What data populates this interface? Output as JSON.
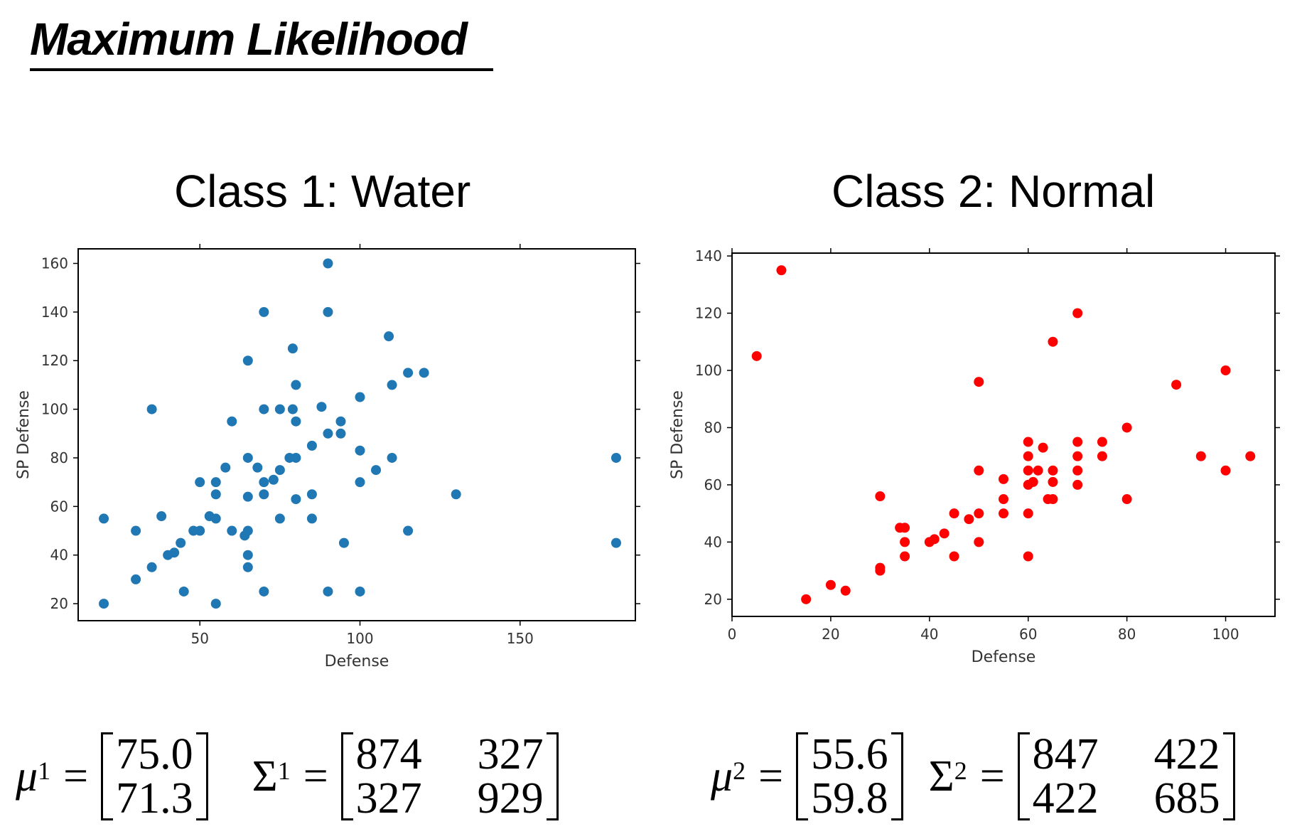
{
  "page_title": "Maximum Likelihood",
  "class_titles": [
    "Class 1: Water",
    "Class 2: Normal"
  ],
  "formulas": {
    "class1": {
      "mu_symbol": "μ",
      "mu_sup": "1",
      "mu": [
        "75.0",
        "71.3"
      ],
      "sigma_symbol": "Σ",
      "sigma_sup": "1",
      "sigma": [
        [
          "874",
          "327"
        ],
        [
          "327",
          "929"
        ]
      ]
    },
    "class2": {
      "mu_symbol": "μ",
      "mu_sup": "2",
      "mu": [
        "55.6",
        "59.8"
      ],
      "sigma_symbol": "Σ",
      "sigma_sup": "2",
      "sigma": [
        [
          "847",
          "422"
        ],
        [
          "422",
          "685"
        ]
      ]
    }
  },
  "chart_data": [
    {
      "type": "scatter",
      "title": "Class 1: Water",
      "xlabel": "Defense",
      "ylabel": "SP Defense",
      "xlim": [
        12,
        186
      ],
      "ylim": [
        13,
        166
      ],
      "xticks": [
        50,
        100,
        150
      ],
      "yticks": [
        20,
        40,
        60,
        80,
        100,
        120,
        140,
        160
      ],
      "color": "#1f77b4",
      "points": [
        [
          20,
          20
        ],
        [
          20,
          55
        ],
        [
          30,
          50
        ],
        [
          30,
          30
        ],
        [
          35,
          100
        ],
        [
          35,
          35
        ],
        [
          38,
          56
        ],
        [
          40,
          40
        ],
        [
          42,
          41
        ],
        [
          44,
          45
        ],
        [
          45,
          25
        ],
        [
          48,
          50
        ],
        [
          50,
          50
        ],
        [
          50,
          70
        ],
        [
          53,
          56
        ],
        [
          55,
          70
        ],
        [
          55,
          65
        ],
        [
          55,
          55
        ],
        [
          55,
          20
        ],
        [
          58,
          76
        ],
        [
          60,
          95
        ],
        [
          60,
          50
        ],
        [
          64,
          48
        ],
        [
          65,
          50
        ],
        [
          65,
          120
        ],
        [
          65,
          80
        ],
        [
          65,
          64
        ],
        [
          65,
          40
        ],
        [
          65,
          35
        ],
        [
          68,
          76
        ],
        [
          70,
          140
        ],
        [
          70,
          100
        ],
        [
          70,
          70
        ],
        [
          70,
          65
        ],
        [
          70,
          25
        ],
        [
          73,
          71
        ],
        [
          75,
          100
        ],
        [
          75,
          75
        ],
        [
          75,
          55
        ],
        [
          78,
          80
        ],
        [
          79,
          100
        ],
        [
          79,
          125
        ],
        [
          80,
          110
        ],
        [
          80,
          95
        ],
        [
          80,
          80
        ],
        [
          80,
          63
        ],
        [
          85,
          85
        ],
        [
          85,
          65
        ],
        [
          85,
          55
        ],
        [
          88,
          101
        ],
        [
          90,
          160
        ],
        [
          90,
          140
        ],
        [
          90,
          90
        ],
        [
          90,
          25
        ],
        [
          94,
          90
        ],
        [
          94,
          95
        ],
        [
          95,
          45
        ],
        [
          100,
          105
        ],
        [
          100,
          83
        ],
        [
          100,
          70
        ],
        [
          100,
          25
        ],
        [
          105,
          75
        ],
        [
          109,
          130
        ],
        [
          110,
          110
        ],
        [
          110,
          80
        ],
        [
          115,
          115
        ],
        [
          115,
          50
        ],
        [
          120,
          115
        ],
        [
          130,
          65
        ],
        [
          180,
          80
        ],
        [
          180,
          45
        ]
      ]
    },
    {
      "type": "scatter",
      "title": "Class 2: Normal",
      "xlabel": "Defense",
      "ylabel": "SP Defense",
      "xlim": [
        0,
        110
      ],
      "ylim": [
        14,
        141
      ],
      "xticks": [
        0,
        20,
        40,
        60,
        80,
        100
      ],
      "yticks": [
        20,
        40,
        60,
        80,
        100,
        120,
        140
      ],
      "color": "#ff0000",
      "points": [
        [
          5,
          105
        ],
        [
          10,
          135
        ],
        [
          15,
          20
        ],
        [
          20,
          25
        ],
        [
          23,
          23
        ],
        [
          30,
          56
        ],
        [
          30,
          31
        ],
        [
          30,
          30
        ],
        [
          34,
          45
        ],
        [
          35,
          45
        ],
        [
          35,
          40
        ],
        [
          35,
          35
        ],
        [
          40,
          40
        ],
        [
          41,
          41
        ],
        [
          43,
          43
        ],
        [
          45,
          50
        ],
        [
          45,
          35
        ],
        [
          48,
          48
        ],
        [
          50,
          96
        ],
        [
          50,
          65
        ],
        [
          50,
          50
        ],
        [
          50,
          40
        ],
        [
          55,
          62
        ],
        [
          55,
          55
        ],
        [
          55,
          50
        ],
        [
          60,
          75
        ],
        [
          60,
          70
        ],
        [
          60,
          65
        ],
        [
          60,
          60
        ],
        [
          60,
          50
        ],
        [
          60,
          35
        ],
        [
          61,
          61
        ],
        [
          62,
          65
        ],
        [
          63,
          73
        ],
        [
          64,
          55
        ],
        [
          65,
          110
        ],
        [
          65,
          65
        ],
        [
          65,
          61
        ],
        [
          65,
          55
        ],
        [
          70,
          120
        ],
        [
          70,
          75
        ],
        [
          70,
          70
        ],
        [
          70,
          65
        ],
        [
          70,
          60
        ],
        [
          75,
          75
        ],
        [
          75,
          70
        ],
        [
          80,
          80
        ],
        [
          80,
          55
        ],
        [
          90,
          95
        ],
        [
          95,
          70
        ],
        [
          100,
          100
        ],
        [
          100,
          65
        ],
        [
          105,
          70
        ]
      ]
    }
  ]
}
